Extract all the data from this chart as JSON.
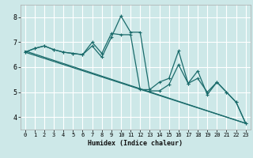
{
  "title": "",
  "xlabel": "Humidex (Indice chaleur)",
  "ylabel": "",
  "bg_color": "#cde8e8",
  "grid_color": "#ffffff",
  "line_color": "#1a6b6b",
  "spine_color": "#aaaaaa",
  "xlim": [
    -0.5,
    23.5
  ],
  "ylim": [
    3.5,
    8.5
  ],
  "yticks": [
    4,
    5,
    6,
    7,
    8
  ],
  "xticks": [
    0,
    1,
    2,
    3,
    4,
    5,
    6,
    7,
    8,
    9,
    10,
    11,
    12,
    13,
    14,
    15,
    16,
    17,
    18,
    19,
    20,
    21,
    22,
    23
  ],
  "line1_x": [
    0,
    1,
    2,
    3,
    4,
    5,
    6,
    7,
    8,
    9,
    10,
    11,
    12,
    13,
    14,
    15,
    16,
    17,
    18,
    19,
    20,
    21,
    22,
    23
  ],
  "line1_y": [
    6.6,
    6.75,
    6.85,
    6.7,
    6.6,
    6.55,
    6.5,
    6.85,
    6.4,
    7.2,
    8.05,
    7.4,
    7.4,
    5.05,
    5.05,
    5.3,
    6.1,
    5.35,
    5.85,
    4.9,
    5.4,
    5.0,
    4.6,
    3.75
  ],
  "line2_x": [
    0,
    1,
    2,
    3,
    4,
    5,
    6,
    7,
    8,
    9,
    10,
    11,
    12,
    13,
    14,
    15,
    16,
    17,
    18,
    19,
    20,
    21,
    22,
    23
  ],
  "line2_y": [
    6.6,
    6.75,
    6.85,
    6.7,
    6.6,
    6.55,
    6.5,
    7.0,
    6.55,
    7.35,
    7.3,
    7.3,
    5.1,
    5.1,
    5.4,
    5.55,
    6.65,
    5.35,
    5.55,
    5.0,
    5.4,
    5.0,
    4.6,
    3.75
  ],
  "trend1_x": [
    0,
    23
  ],
  "trend1_y": [
    6.65,
    3.75
  ],
  "trend2_x": [
    0,
    23
  ],
  "trend2_y": [
    6.6,
    3.75
  ]
}
